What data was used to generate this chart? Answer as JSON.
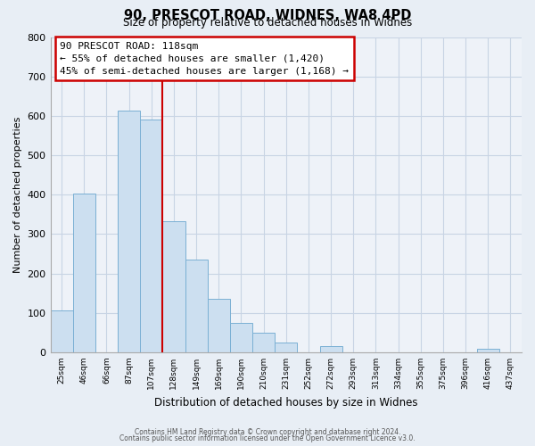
{
  "title": "90, PRESCOT ROAD, WIDNES, WA8 4PD",
  "subtitle": "Size of property relative to detached houses in Widnes",
  "xlabel": "Distribution of detached houses by size in Widnes",
  "ylabel": "Number of detached properties",
  "bin_labels": [
    "25sqm",
    "46sqm",
    "66sqm",
    "87sqm",
    "107sqm",
    "128sqm",
    "149sqm",
    "169sqm",
    "190sqm",
    "210sqm",
    "231sqm",
    "252sqm",
    "272sqm",
    "293sqm",
    "313sqm",
    "334sqm",
    "355sqm",
    "375sqm",
    "396sqm",
    "416sqm",
    "437sqm"
  ],
  "bar_heights": [
    106,
    402,
    0,
    614,
    590,
    332,
    236,
    136,
    75,
    49,
    25,
    0,
    15,
    0,
    0,
    0,
    0,
    0,
    0,
    8,
    0
  ],
  "bar_color": "#ccdff0",
  "bar_edge_color": "#7ab0d4",
  "redline_bin": 4,
  "annotation_title": "90 PRESCOT ROAD: 118sqm",
  "annotation_line1": "← 55% of detached houses are smaller (1,420)",
  "annotation_line2": "45% of semi-detached houses are larger (1,168) →",
  "annotation_box_color": "#ffffff",
  "annotation_box_edge": "#cc0000",
  "redline_color": "#cc0000",
  "ylim": [
    0,
    800
  ],
  "yticks": [
    0,
    100,
    200,
    300,
    400,
    500,
    600,
    700,
    800
  ],
  "footer1": "Contains HM Land Registry data © Crown copyright and database right 2024.",
  "footer2": "Contains public sector information licensed under the Open Government Licence v3.0.",
  "background_color": "#e8eef5",
  "plot_bg_color": "#eef2f8",
  "grid_color": "#c8d4e4"
}
